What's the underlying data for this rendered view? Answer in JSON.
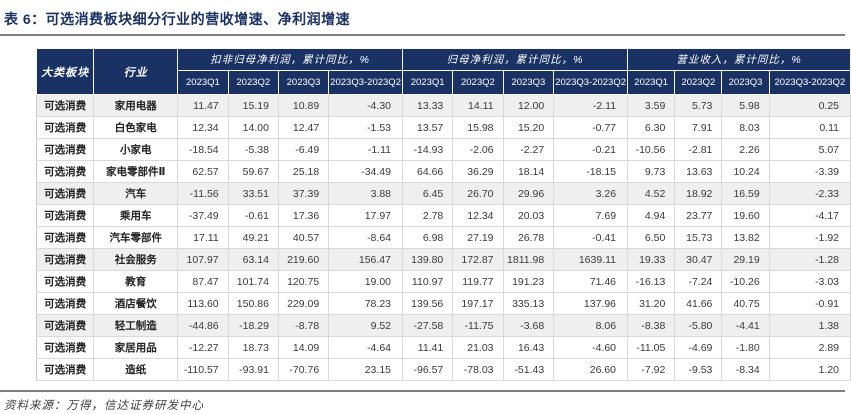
{
  "title": "表 6：可选消费板块细分行业的营收增速、净利润增速",
  "footer": {
    "source": "资料来源：万得，信达证券研发中心"
  },
  "colors": {
    "header_bg": "#1a3263",
    "accent": "#1a3263",
    "highlight_row_bg": "#efefef",
    "rule": "#7f7f7f"
  },
  "table": {
    "col1_header": "大类板块",
    "col2_header": "行业",
    "groups": [
      {
        "label": "扣非归母净利润，累计同比，%"
      },
      {
        "label": "归母净利润，累计同比，%"
      },
      {
        "label": "营业收入，累计同比，%"
      }
    ],
    "quarter_labels": [
      "2023Q1",
      "2023Q2",
      "2023Q3",
      "2023Q3-2023Q2"
    ],
    "rows": [
      {
        "sector": "可选消费",
        "industry": "家用电器",
        "highlight": true,
        "values": [
          "11.47",
          "15.19",
          "10.89",
          "-4.30",
          "13.33",
          "14.11",
          "12.00",
          "-2.11",
          "3.59",
          "5.73",
          "5.98",
          "0.25"
        ]
      },
      {
        "sector": "可选消费",
        "industry": "白色家电",
        "highlight": false,
        "values": [
          "12.34",
          "14.00",
          "12.47",
          "-1.53",
          "13.57",
          "15.98",
          "15.20",
          "-0.77",
          "6.30",
          "7.91",
          "8.03",
          "0.11"
        ]
      },
      {
        "sector": "可选消费",
        "industry": "小家电",
        "highlight": false,
        "values": [
          "-18.54",
          "-5.38",
          "-6.49",
          "-1.11",
          "-14.93",
          "-2.06",
          "-2.27",
          "-0.21",
          "-10.56",
          "-2.81",
          "2.26",
          "5.07"
        ]
      },
      {
        "sector": "可选消费",
        "industry": "家电零部件Ⅱ",
        "highlight": false,
        "values": [
          "62.57",
          "59.67",
          "25.18",
          "-34.49",
          "64.66",
          "36.29",
          "18.14",
          "-18.15",
          "9.73",
          "13.63",
          "10.24",
          "-3.39"
        ]
      },
      {
        "sector": "可选消费",
        "industry": "汽车",
        "highlight": true,
        "values": [
          "-11.56",
          "33.51",
          "37.39",
          "3.88",
          "6.45",
          "26.70",
          "29.96",
          "3.26",
          "4.52",
          "18.92",
          "16.59",
          "-2.33"
        ]
      },
      {
        "sector": "可选消费",
        "industry": "乘用车",
        "highlight": false,
        "values": [
          "-37.49",
          "-0.61",
          "17.36",
          "17.97",
          "2.78",
          "12.34",
          "20.03",
          "7.69",
          "4.94",
          "23.77",
          "19.60",
          "-4.17"
        ]
      },
      {
        "sector": "可选消费",
        "industry": "汽车零部件",
        "highlight": false,
        "values": [
          "17.11",
          "49.21",
          "40.57",
          "-8.64",
          "6.98",
          "27.19",
          "26.78",
          "-0.41",
          "6.50",
          "15.73",
          "13.82",
          "-1.92"
        ]
      },
      {
        "sector": "可选消费",
        "industry": "社会服务",
        "highlight": true,
        "values": [
          "107.97",
          "63.14",
          "219.60",
          "156.47",
          "139.80",
          "172.87",
          "1811.98",
          "1639.11",
          "19.33",
          "30.47",
          "29.19",
          "-1.28"
        ]
      },
      {
        "sector": "可选消费",
        "industry": "教育",
        "highlight": false,
        "values": [
          "87.47",
          "101.74",
          "120.75",
          "19.00",
          "110.97",
          "119.77",
          "191.23",
          "71.46",
          "-16.13",
          "-7.24",
          "-10.26",
          "-3.03"
        ]
      },
      {
        "sector": "可选消费",
        "industry": "酒店餐饮",
        "highlight": false,
        "values": [
          "113.60",
          "150.86",
          "229.09",
          "78.23",
          "139.56",
          "197.17",
          "335.13",
          "137.96",
          "31.20",
          "41.66",
          "40.75",
          "-0.91"
        ]
      },
      {
        "sector": "可选消费",
        "industry": "轻工制造",
        "highlight": true,
        "values": [
          "-44.86",
          "-18.29",
          "-8.78",
          "9.52",
          "-27.58",
          "-11.75",
          "-3.68",
          "8.06",
          "-8.38",
          "-5.80",
          "-4.41",
          "1.38"
        ]
      },
      {
        "sector": "可选消费",
        "industry": "家居用品",
        "highlight": false,
        "values": [
          "-12.27",
          "18.73",
          "14.09",
          "-4.64",
          "11.41",
          "21.03",
          "16.43",
          "-4.60",
          "-11.05",
          "-4.69",
          "-1.80",
          "2.89"
        ]
      },
      {
        "sector": "可选消费",
        "industry": "造纸",
        "highlight": false,
        "values": [
          "-110.57",
          "-93.91",
          "-70.76",
          "23.15",
          "-96.57",
          "-78.03",
          "-51.43",
          "26.60",
          "-7.92",
          "-9.53",
          "-8.34",
          "1.20"
        ]
      }
    ]
  }
}
